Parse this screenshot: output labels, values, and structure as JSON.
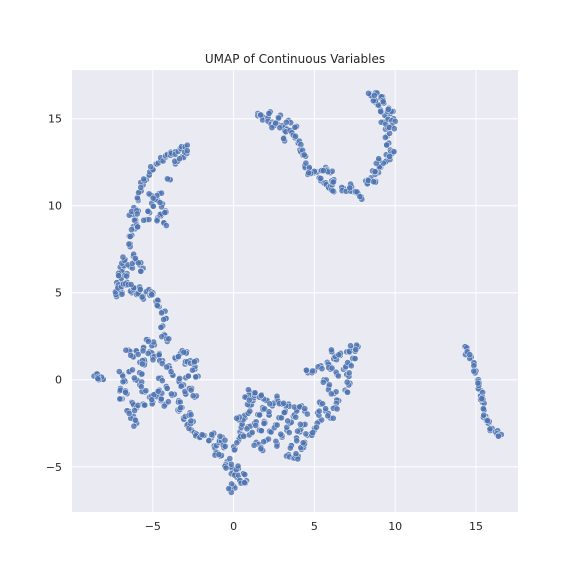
{
  "chart_data": {
    "type": "scatter",
    "title": "UMAP of Continuous Variables",
    "xlabel": "",
    "ylabel": "",
    "xlim": [
      -10.0,
      17.6
    ],
    "ylim": [
      -7.6,
      17.8
    ],
    "xticks": [
      -5,
      0,
      5,
      10,
      15
    ],
    "yticks": [
      -5,
      0,
      5,
      10,
      15
    ],
    "xtick_labels": [
      "−5",
      "0",
      "5",
      "10",
      "15"
    ],
    "ytick_labels": [
      "−5",
      "0",
      "5",
      "10",
      "15"
    ],
    "grid": true,
    "point_color": "#4c72b0",
    "background": "#eaeaf2",
    "series": [
      {
        "points": [
          [
            -8.5,
            0.3
          ],
          [
            -8.3,
            0.2
          ],
          [
            -8.1,
            0.05
          ],
          [
            -8.4,
            0.15
          ],
          [
            -7.3,
            4.9
          ],
          [
            -7.2,
            5.2
          ],
          [
            -7.1,
            5.6
          ],
          [
            -7.0,
            5.9
          ],
          [
            -6.9,
            6.3
          ],
          [
            -6.8,
            6.6
          ],
          [
            -6.7,
            6.9
          ],
          [
            -6.9,
            5.0
          ],
          [
            -7.2,
            5.4
          ],
          [
            -6.6,
            6.1
          ],
          [
            -7.0,
            5.3
          ],
          [
            -6.8,
            5.5
          ],
          [
            -7.1,
            6.0
          ],
          [
            -6.6,
            5.6
          ],
          [
            -6.3,
            5.0
          ],
          [
            -6.0,
            4.9
          ],
          [
            -5.6,
            4.8
          ],
          [
            -5.3,
            5.1
          ],
          [
            -5.0,
            4.9
          ],
          [
            -6.2,
            5.3
          ],
          [
            -5.8,
            5.2
          ],
          [
            -6.4,
            6.5
          ],
          [
            -6.1,
            6.8
          ],
          [
            -5.8,
            6.6
          ],
          [
            -5.6,
            6.4
          ],
          [
            -6.2,
            7.1
          ],
          [
            -6.4,
            7.8
          ],
          [
            -6.3,
            8.3
          ],
          [
            -6.2,
            8.8
          ],
          [
            -6.1,
            9.3
          ],
          [
            -6.0,
            9.8
          ],
          [
            -5.9,
            10.3
          ],
          [
            -5.8,
            10.8
          ],
          [
            -5.6,
            11.2
          ],
          [
            -5.4,
            11.5
          ],
          [
            -5.2,
            11.8
          ],
          [
            -5.0,
            12.1
          ],
          [
            -4.8,
            12.4
          ],
          [
            -4.5,
            12.6
          ],
          [
            -4.2,
            12.8
          ],
          [
            -3.9,
            12.9
          ],
          [
            -3.6,
            13.1
          ],
          [
            -3.3,
            13.3
          ],
          [
            -3.0,
            13.4
          ],
          [
            -6.3,
            9.5
          ],
          [
            -6.0,
            8.9
          ],
          [
            -5.9,
            9.7
          ],
          [
            -5.4,
            9.2
          ],
          [
            -5.2,
            9.6
          ],
          [
            -5.0,
            10.0
          ],
          [
            -4.8,
            10.4
          ],
          [
            -4.6,
            10.7
          ],
          [
            -4.5,
            9.5
          ],
          [
            -4.4,
            10.1
          ],
          [
            -4.3,
            9.0
          ],
          [
            -4.7,
            9.3
          ],
          [
            -5.1,
            10.6
          ],
          [
            -4.2,
            9.7
          ],
          [
            -4.0,
            11.5
          ],
          [
            -3.6,
            12.4
          ],
          [
            -3.2,
            12.8
          ],
          [
            -2.9,
            13.0
          ],
          [
            -5.0,
            5.0
          ],
          [
            -4.8,
            4.5
          ],
          [
            -4.6,
            4.2
          ],
          [
            -4.4,
            3.9
          ],
          [
            -4.2,
            3.5
          ],
          [
            -4.5,
            3.0
          ],
          [
            -4.3,
            2.6
          ],
          [
            -4.1,
            2.2
          ],
          [
            -5.5,
            1.0
          ],
          [
            -5.2,
            1.6
          ],
          [
            -4.9,
            2.0
          ],
          [
            -5.0,
            1.3
          ],
          [
            -4.6,
            1.5
          ],
          [
            -5.3,
            2.3
          ],
          [
            -5.6,
            1.8
          ],
          [
            -4.4,
            1.1
          ],
          [
            -4.0,
            0.8
          ],
          [
            -3.6,
            1.2
          ],
          [
            -3.3,
            1.5
          ],
          [
            -3.0,
            0.9
          ],
          [
            -2.7,
            1.1
          ],
          [
            -3.8,
            0.3
          ],
          [
            -3.4,
            0.0
          ],
          [
            -3.1,
            -0.3
          ],
          [
            -2.8,
            0.2
          ],
          [
            -2.4,
            0.6
          ],
          [
            -2.3,
            1.1
          ],
          [
            -2.2,
            0.2
          ],
          [
            -4.1,
            -0.5
          ],
          [
            -3.8,
            -0.9
          ],
          [
            -3.4,
            -1.2
          ],
          [
            -3.0,
            -0.8
          ],
          [
            -2.6,
            -0.5
          ],
          [
            -2.4,
            -1.0
          ],
          [
            -4.5,
            0.1
          ],
          [
            -2.9,
            1.6
          ],
          [
            -6.5,
            1.7
          ],
          [
            -6.2,
            1.3
          ],
          [
            -6.0,
            1.6
          ],
          [
            -5.8,
            1.0
          ],
          [
            -6.4,
            0.5
          ],
          [
            -6.1,
            0.0
          ],
          [
            -5.7,
            0.3
          ],
          [
            -6.7,
            -0.1
          ],
          [
            -7.0,
            -0.5
          ],
          [
            -6.9,
            0.3
          ],
          [
            -6.6,
            -0.8
          ],
          [
            -6.3,
            -1.3
          ],
          [
            -6.0,
            -1.6
          ],
          [
            -6.2,
            -2.1
          ],
          [
            -6.0,
            -2.5
          ],
          [
            -6.5,
            -1.8
          ],
          [
            -6.9,
            -1.1
          ],
          [
            -5.5,
            -0.7
          ],
          [
            -5.2,
            -1.0
          ],
          [
            -4.8,
            -0.8
          ],
          [
            -4.5,
            -1.2
          ],
          [
            -4.2,
            -1.4
          ],
          [
            -5.6,
            -1.4
          ],
          [
            -5.0,
            -1.3
          ],
          [
            -4.6,
            -0.6
          ],
          [
            -5.8,
            -0.3
          ],
          [
            -3.4,
            -1.8
          ],
          [
            -3.1,
            -2.2
          ],
          [
            -2.9,
            -2.6
          ],
          [
            -2.6,
            -2.9
          ],
          [
            -2.3,
            -3.1
          ],
          [
            -2.0,
            -3.2
          ],
          [
            -3.2,
            -1.6
          ],
          [
            -2.7,
            -1.9
          ],
          [
            -2.5,
            -2.4
          ],
          [
            -1.8,
            -3.2
          ],
          [
            -1.5,
            -3.5
          ],
          [
            -1.2,
            -3.8
          ],
          [
            -1.0,
            -4.2
          ],
          [
            -0.8,
            -4.4
          ],
          [
            -1.3,
            -3.2
          ],
          [
            -0.9,
            -3.6
          ],
          [
            -0.6,
            -3.9
          ],
          [
            -0.7,
            -3.3
          ],
          [
            -0.4,
            -4.7
          ],
          [
            -0.2,
            -5.0
          ],
          [
            0.0,
            -5.3
          ],
          [
            0.2,
            -5.6
          ],
          [
            0.4,
            -5.8
          ],
          [
            0.0,
            -6.1
          ],
          [
            -0.2,
            -6.3
          ],
          [
            0.3,
            -5.1
          ],
          [
            0.6,
            -5.4
          ],
          [
            0.8,
            -5.8
          ],
          [
            -0.5,
            -4.9
          ],
          [
            0.1,
            -4.0
          ],
          [
            0.3,
            -3.5
          ],
          [
            0.4,
            -3.0
          ],
          [
            0.5,
            -2.6
          ],
          [
            0.7,
            -2.2
          ],
          [
            0.9,
            -1.9
          ],
          [
            1.0,
            -1.5
          ],
          [
            1.2,
            -1.2
          ],
          [
            0.3,
            -2.3
          ],
          [
            0.6,
            -3.2
          ],
          [
            0.9,
            -2.7
          ],
          [
            1.1,
            -3.1
          ],
          [
            1.3,
            -2.5
          ],
          [
            1.5,
            -2.0
          ],
          [
            1.8,
            -1.6
          ],
          [
            2.0,
            -1.2
          ],
          [
            1.6,
            -2.9
          ],
          [
            1.9,
            -2.4
          ],
          [
            2.2,
            -2.0
          ],
          [
            2.4,
            -1.5
          ],
          [
            1.4,
            -3.6
          ],
          [
            1.7,
            -3.9
          ],
          [
            2.0,
            -3.5
          ],
          [
            2.3,
            -3.0
          ],
          [
            2.6,
            -2.6
          ],
          [
            2.9,
            -2.2
          ],
          [
            3.2,
            -1.8
          ],
          [
            3.4,
            -1.4
          ],
          [
            2.7,
            -3.7
          ],
          [
            3.0,
            -3.3
          ],
          [
            3.3,
            -2.9
          ],
          [
            3.5,
            -2.5
          ],
          [
            3.7,
            -2.1
          ],
          [
            3.9,
            -1.7
          ],
          [
            4.2,
            -1.5
          ],
          [
            4.4,
            -1.8
          ],
          [
            3.6,
            -3.8
          ],
          [
            3.9,
            -3.4
          ],
          [
            4.1,
            -3.0
          ],
          [
            4.3,
            -2.6
          ],
          [
            3.4,
            -4.3
          ],
          [
            3.7,
            -4.5
          ],
          [
            4.0,
            -4.4
          ],
          [
            4.2,
            -4.0
          ],
          [
            4.4,
            -3.6
          ],
          [
            4.6,
            -3.2
          ],
          [
            1.0,
            -0.7
          ],
          [
            1.3,
            -0.9
          ],
          [
            1.6,
            -1.0
          ],
          [
            0.8,
            -1.0
          ],
          [
            2.7,
            -1.1
          ],
          [
            3.0,
            -1.4
          ],
          [
            4.6,
            0.4
          ],
          [
            5.0,
            0.5
          ],
          [
            5.4,
            0.8
          ],
          [
            5.8,
            1.0
          ],
          [
            6.2,
            1.2
          ],
          [
            6.6,
            1.4
          ],
          [
            7.0,
            1.6
          ],
          [
            7.4,
            1.8
          ],
          [
            7.7,
            1.9
          ],
          [
            6.0,
            0.6
          ],
          [
            6.4,
            0.3
          ],
          [
            6.8,
            0.6
          ],
          [
            7.2,
            0.9
          ],
          [
            7.5,
            1.2
          ],
          [
            5.6,
            0.0
          ],
          [
            5.9,
            -0.4
          ],
          [
            6.2,
            -0.8
          ],
          [
            6.5,
            -1.2
          ],
          [
            6.9,
            -0.6
          ],
          [
            7.2,
            -0.2
          ],
          [
            5.4,
            -1.4
          ],
          [
            5.7,
            -1.8
          ],
          [
            6.0,
            -2.2
          ],
          [
            5.3,
            -2.4
          ],
          [
            5.0,
            -2.8
          ],
          [
            4.8,
            -3.1
          ],
          [
            5.2,
            -1.9
          ],
          [
            6.3,
            -1.6
          ],
          [
            7.0,
            0.3
          ],
          [
            6.1,
            1.6
          ],
          [
            1.5,
            15.3
          ],
          [
            1.8,
            15.1
          ],
          [
            2.1,
            15.0
          ],
          [
            2.4,
            14.8
          ],
          [
            2.7,
            14.7
          ],
          [
            3.0,
            14.6
          ],
          [
            3.3,
            14.4
          ],
          [
            3.6,
            14.2
          ],
          [
            3.8,
            13.9
          ],
          [
            4.0,
            13.6
          ],
          [
            4.1,
            13.2
          ],
          [
            4.3,
            12.9
          ],
          [
            2.2,
            15.3
          ],
          [
            2.9,
            15.2
          ],
          [
            3.4,
            14.9
          ],
          [
            3.8,
            14.5
          ],
          [
            2.5,
            14.6
          ],
          [
            3.1,
            13.9
          ],
          [
            4.4,
            12.3
          ],
          [
            4.7,
            12.1
          ],
          [
            5.0,
            11.9
          ],
          [
            5.3,
            11.6
          ],
          [
            5.6,
            11.3
          ],
          [
            5.9,
            11.0
          ],
          [
            6.2,
            10.8
          ],
          [
            5.7,
            12.2
          ],
          [
            6.0,
            11.9
          ],
          [
            6.2,
            11.5
          ],
          [
            4.6,
            11.8
          ],
          [
            5.4,
            12.0
          ],
          [
            6.1,
            11.2
          ],
          [
            6.8,
            11.0
          ],
          [
            7.1,
            10.9
          ],
          [
            7.4,
            10.8
          ],
          [
            7.7,
            10.7
          ],
          [
            7.9,
            10.5
          ],
          [
            7.3,
            11.1
          ],
          [
            8.3,
            11.3
          ],
          [
            8.5,
            11.6
          ],
          [
            8.8,
            11.9
          ],
          [
            9.1,
            12.2
          ],
          [
            9.4,
            12.5
          ],
          [
            9.6,
            12.8
          ],
          [
            9.7,
            13.2
          ],
          [
            9.6,
            13.6
          ],
          [
            9.5,
            14.0
          ],
          [
            9.4,
            14.4
          ],
          [
            9.3,
            14.8
          ],
          [
            9.5,
            15.1
          ],
          [
            9.7,
            15.3
          ],
          [
            9.9,
            15.0
          ],
          [
            9.8,
            14.6
          ],
          [
            9.1,
            15.5
          ],
          [
            8.9,
            15.8
          ],
          [
            8.7,
            16.1
          ],
          [
            8.5,
            16.4
          ],
          [
            8.8,
            16.5
          ],
          [
            9.1,
            16.2
          ],
          [
            9.3,
            15.9
          ],
          [
            8.8,
            11.4
          ],
          [
            9.0,
            12.6
          ],
          [
            9.8,
            13.0
          ],
          [
            8.6,
            12.0
          ],
          [
            9.6,
            15.6
          ],
          [
            14.3,
            1.9
          ],
          [
            14.5,
            1.6
          ],
          [
            14.7,
            1.3
          ],
          [
            14.9,
            0.9
          ],
          [
            15.0,
            0.5
          ],
          [
            15.1,
            0.0
          ],
          [
            15.2,
            -0.5
          ],
          [
            15.3,
            -0.9
          ],
          [
            15.4,
            -1.3
          ],
          [
            15.5,
            -1.7
          ],
          [
            15.6,
            -2.1
          ],
          [
            15.8,
            -2.5
          ],
          [
            16.0,
            -2.8
          ],
          [
            16.2,
            -3.0
          ],
          [
            16.4,
            -3.2
          ],
          [
            15.2,
            -0.2
          ],
          [
            15.4,
            -1.0
          ],
          [
            15.7,
            -2.3
          ]
        ]
      }
    ]
  }
}
